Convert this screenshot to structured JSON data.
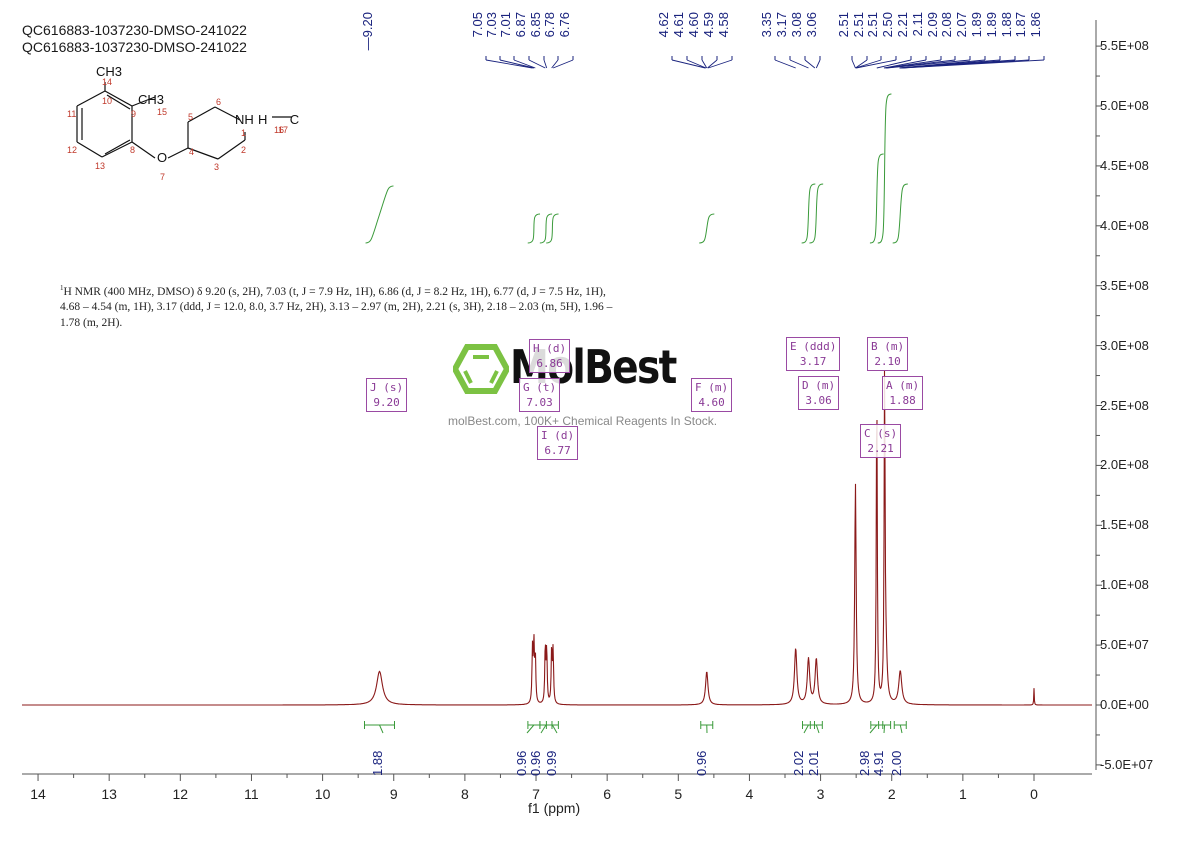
{
  "header": {
    "title_line_1": "QC616883-1037230-DMSO-241022",
    "title_line_2": "QC616883-1037230-DMSO-241022"
  },
  "structure": {
    "labels": {
      "ch3_top": "CH3",
      "ch3_side": "CH3",
      "nh": "NH",
      "h": "H",
      "cl": "Cl",
      "o": "O"
    },
    "atom_numbers": [
      "1",
      "2",
      "3",
      "4",
      "5",
      "6",
      "7",
      "8",
      "9",
      "10",
      "11",
      "12",
      "13",
      "14",
      "15",
      "16",
      "17"
    ]
  },
  "description": {
    "text": "H NMR (400 MHz, DMSO) δ 9.20 (s, 2H), 7.03 (t, J = 7.9 Hz, 1H), 6.86 (d, J = 8.2 Hz, 1H), 6.77 (d, J = 7.5 Hz, 1H), 4.68 – 4.54 (m, 1H), 3.17 (ddd, J = 12.0, 8.0, 3.7 Hz, 2H), 3.13 – 2.97 (m, 2H), 2.21 (s, 3H), 2.18 – 2.03 (m, 5H), 1.96 – 1.78 (m, 2H).",
    "superscript": "1"
  },
  "watermark": {
    "brand": "MolBest",
    "tagline": "molBest.com, 100K+ Chemical Reagents In Stock."
  },
  "chart_data": {
    "type": "line",
    "title": "QC616883-1037230-DMSO-241022",
    "xlabel": "f1 (ppm)",
    "ylabel": "",
    "xlim": [
      14.2,
      -0.85
    ],
    "ylim": [
      -50000000.0,
      550000000.0
    ],
    "x_ticks": [
      14,
      13,
      12,
      11,
      10,
      9,
      8,
      7,
      6,
      5,
      4,
      3,
      2,
      1,
      0
    ],
    "y_ticks": [
      "5.5E+08",
      "5.0E+08",
      "4.5E+08",
      "4.0E+08",
      "3.5E+08",
      "3.0E+08",
      "2.5E+08",
      "2.0E+08",
      "1.5E+08",
      "1.0E+08",
      "5.0E+07",
      "0.0E+00",
      "-5.0E+07"
    ],
    "grid": false,
    "peak_labels": [
      "9.20",
      "7.05",
      "7.03",
      "7.01",
      "6.87",
      "6.85",
      "6.78",
      "6.76",
      "4.62",
      "4.61",
      "4.60",
      "4.59",
      "4.58",
      "3.35",
      "3.17",
      "3.08",
      "3.06",
      "2.51",
      "2.51",
      "2.51",
      "2.50",
      "2.21",
      "2.11",
      "2.09",
      "2.08",
      "2.07",
      "1.89",
      "1.89",
      "1.88",
      "1.87",
      "1.86"
    ],
    "peaks": [
      {
        "ppm": 9.2,
        "height": 28000000.0,
        "width": 0.05
      },
      {
        "ppm": 7.05,
        "height": 45000000.0,
        "width": 0.008
      },
      {
        "ppm": 7.03,
        "height": 49000000.0,
        "width": 0.008
      },
      {
        "ppm": 7.01,
        "height": 40000000.0,
        "width": 0.008
      },
      {
        "ppm": 6.87,
        "height": 48000000.0,
        "width": 0.008
      },
      {
        "ppm": 6.85,
        "height": 45000000.0,
        "width": 0.008
      },
      {
        "ppm": 6.78,
        "height": 46000000.0,
        "width": 0.008
      },
      {
        "ppm": 6.76,
        "height": 44000000.0,
        "width": 0.008
      },
      {
        "ppm": 4.6,
        "height": 28000000.0,
        "width": 0.02
      },
      {
        "ppm": 3.35,
        "height": 47000000.0,
        "width": 0.02
      },
      {
        "ppm": 3.17,
        "height": 38000000.0,
        "width": 0.02
      },
      {
        "ppm": 3.06,
        "height": 38000000.0,
        "width": 0.02
      },
      {
        "ppm": 2.51,
        "height": 185000000.0,
        "width": 0.012
      },
      {
        "ppm": 2.21,
        "height": 270000000.0,
        "width": 0.008
      },
      {
        "ppm": 2.1,
        "height": 270000000.0,
        "width": 0.008
      },
      {
        "ppm": 2.08,
        "height": 35000000.0,
        "width": 0.02
      },
      {
        "ppm": 1.88,
        "height": 28000000.0,
        "width": 0.025
      },
      {
        "ppm": 0.0,
        "height": 14000000.0,
        "width": 0.004
      }
    ],
    "multiplets": [
      {
        "id": "J",
        "type": "s",
        "shift": "9.20"
      },
      {
        "id": "H",
        "type": "d",
        "shift": "6.86"
      },
      {
        "id": "G",
        "type": "t",
        "shift": "7.03"
      },
      {
        "id": "I",
        "type": "d",
        "shift": "6.77"
      },
      {
        "id": "F",
        "type": "m",
        "shift": "4.60"
      },
      {
        "id": "E",
        "type": "ddd",
        "shift": "3.17"
      },
      {
        "id": "D",
        "type": "m",
        "shift": "3.06"
      },
      {
        "id": "B",
        "type": "m",
        "shift": "2.10"
      },
      {
        "id": "A",
        "type": "m",
        "shift": "1.88"
      },
      {
        "id": "C",
        "type": "s",
        "shift": "2.21"
      }
    ],
    "integrals": [
      {
        "ppm": 9.2,
        "value": "1.88"
      },
      {
        "ppm": 7.03,
        "value": "0.96"
      },
      {
        "ppm": 6.86,
        "value": "0.96"
      },
      {
        "ppm": 6.77,
        "value": "0.99"
      },
      {
        "ppm": 4.6,
        "value": "0.96"
      },
      {
        "ppm": 3.17,
        "value": "2.02"
      },
      {
        "ppm": 3.06,
        "value": "2.01"
      },
      {
        "ppm": 2.21,
        "value": "2.98"
      },
      {
        "ppm": 2.1,
        "value": "4.91"
      },
      {
        "ppm": 1.88,
        "value": "2.00"
      }
    ],
    "colors": {
      "spectrum": "#8b1a1a",
      "peak_tops": "#1a237e",
      "integral": "#3a9a3a",
      "peak_label": "#1a237e",
      "multiplet_box": "#9a4aa3"
    }
  }
}
